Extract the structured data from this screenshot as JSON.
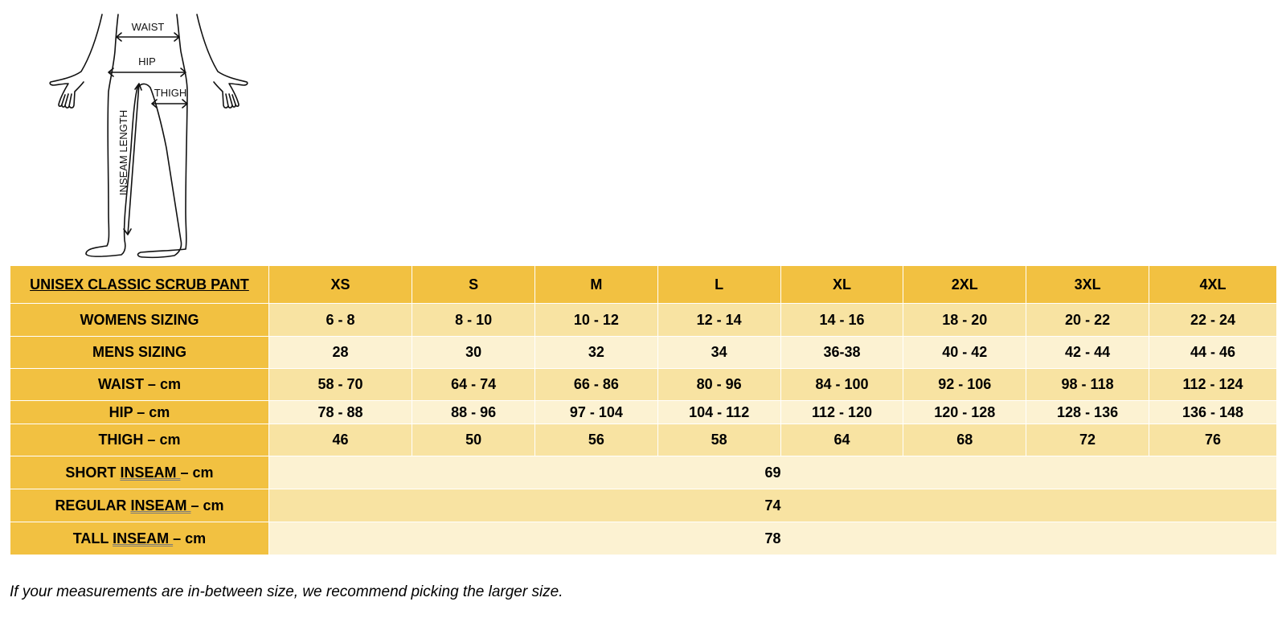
{
  "diagram": {
    "labels": {
      "waist": "WAIST",
      "hip": "HIP",
      "thigh": "THIGH",
      "inseam": "INSEAM LENGTH"
    }
  },
  "table": {
    "title": "UNISEX CLASSIC SCRUB PANT",
    "sizes": [
      "XS",
      "S",
      "M",
      "L",
      "XL",
      "2XL",
      "3XL",
      "4XL"
    ],
    "rows": [
      {
        "label": "WOMENS SIZING",
        "values": [
          "6 - 8",
          "8 - 10",
          "10 - 12",
          "12 - 14",
          "14 - 16",
          "18 - 20",
          "20 - 22",
          "22 - 24"
        ]
      },
      {
        "label": "MENS SIZING",
        "values": [
          "28",
          "30",
          "32",
          "34",
          "36-38",
          "40 - 42",
          "42 - 44",
          "44 - 46"
        ]
      },
      {
        "label": "WAIST – cm",
        "values": [
          "58 - 70",
          "64 - 74",
          "66 - 86",
          "80 - 96",
          "84 - 100",
          "92 - 106",
          "98 - 118",
          "112 - 124"
        ]
      },
      {
        "label": "HIP – cm",
        "values": [
          "78 - 88",
          "88 - 96",
          "97 - 104",
          "104 - 112",
          "112 - 120",
          "120 - 128",
          "128 - 136",
          "136 - 148"
        ]
      },
      {
        "label": "THIGH – cm",
        "values": [
          "46",
          "50",
          "56",
          "58",
          "64",
          "68",
          "72",
          "76"
        ]
      }
    ],
    "inseam_rows": [
      {
        "prefix": "SHORT ",
        "word": "INSEAM ",
        "suffix": " – cm",
        "value": "69"
      },
      {
        "prefix": "REGULAR ",
        "word": "INSEAM ",
        "suffix": " – cm",
        "value": "74"
      },
      {
        "prefix": "TALL ",
        "word": "INSEAM ",
        "suffix": " – cm",
        "value": "78"
      }
    ]
  },
  "footnote": "If your measurements are in-between size, we recommend picking the larger size.",
  "colors": {
    "header": "#f2c141",
    "row_light": "#fcf2d2",
    "row_mid": "#f8e3a2"
  }
}
